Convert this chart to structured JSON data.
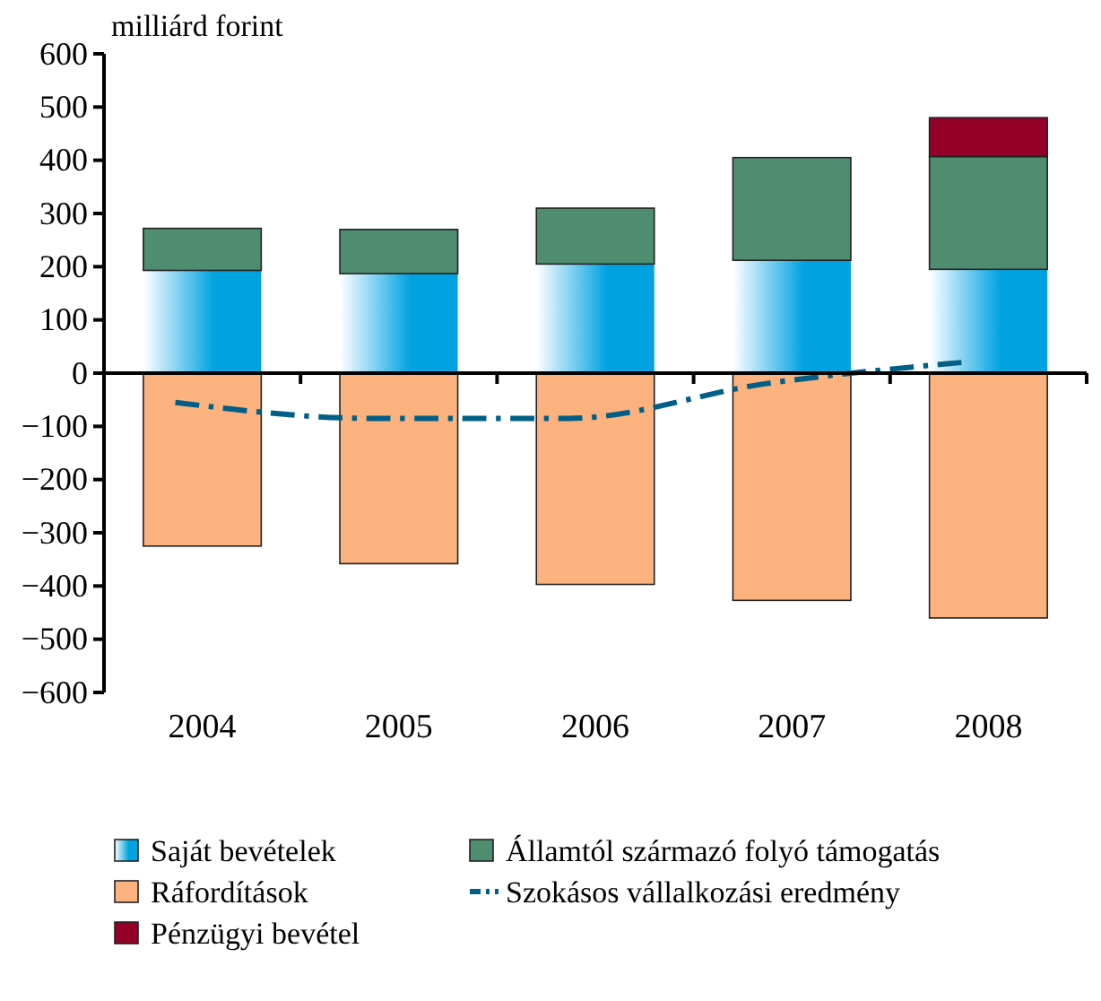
{
  "chart_data": {
    "type": "bar",
    "stacked": true,
    "ylabel": "milliárd forint",
    "categories": [
      "2004",
      "2005",
      "2006",
      "2007",
      "2008"
    ],
    "series": [
      {
        "name": "Saját bevételek",
        "color": "#00a3e0",
        "values": [
          193,
          187,
          205,
          212,
          195
        ]
      },
      {
        "name": "Államtól származó folyó támogatás",
        "color": "#4f8d70",
        "values": [
          79,
          83,
          105,
          193,
          212
        ]
      },
      {
        "name": "Ráfordítások",
        "color": "#fbb27e",
        "values": [
          -325,
          -358,
          -397,
          -427,
          -460
        ]
      },
      {
        "name": "Szokásos vállalkozási eredmény",
        "type": "line",
        "color": "#005f87",
        "line_style": "dashed",
        "marker": "none",
        "values": [
          -55,
          -85,
          -85,
          -20,
          20
        ]
      },
      {
        "name": "Pénzügyi bevétel",
        "color": "#950029",
        "values": [
          null,
          null,
          null,
          null,
          73
        ]
      }
    ],
    "ylim": [
      -600,
      600
    ],
    "yticks": [
      600,
      500,
      400,
      300,
      200,
      100,
      0,
      {
        "value": -100,
        "label": "−100"
      },
      {
        "value": -200,
        "label": "−200"
      },
      {
        "value": -300,
        "label": "−300"
      },
      {
        "value": -400,
        "label": "−400"
      },
      {
        "value": -500,
        "label": "−500"
      },
      {
        "value": -600,
        "label": "−600"
      }
    ],
    "legend": "bottom"
  }
}
